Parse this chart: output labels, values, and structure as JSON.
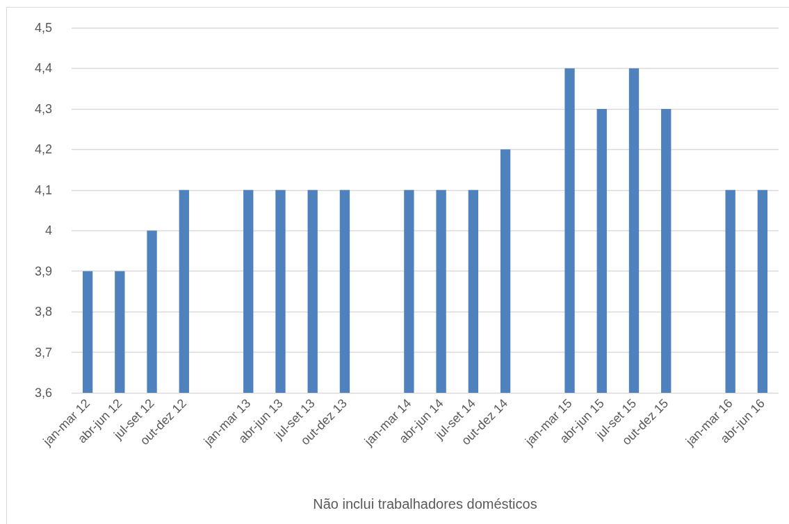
{
  "chart_data": {
    "type": "bar",
    "xlabel": "Não inclui trabalhadores domésticos",
    "categories": [
      "jan-mar 12",
      "abr-jun 12",
      "jul-set 12",
      "out-dez 12",
      null,
      "jan-mar 13",
      "abr-jun 13",
      "jul-set 13",
      "out-dez 13",
      null,
      "jan-mar 14",
      "abr-jun 14",
      "jul-set 14",
      "out-dez 14",
      null,
      "jan-mar 15",
      "abr-jun 15",
      "jul-set 15",
      "out-dez 15",
      null,
      "jan-mar 16",
      "abr-jun 16"
    ],
    "values": [
      3.9,
      3.9,
      4.0,
      4.1,
      null,
      4.1,
      4.1,
      4.1,
      4.1,
      null,
      4.1,
      4.1,
      4.1,
      4.2,
      null,
      4.4,
      4.3,
      4.4,
      4.3,
      null,
      4.1,
      4.1
    ],
    "color": "#4f81bd",
    "ylim": [
      3.6,
      4.5
    ],
    "yticks": [
      {
        "value": 3.6,
        "label": "3,6"
      },
      {
        "value": 3.7,
        "label": "3,7"
      },
      {
        "value": 3.8,
        "label": "3,8"
      },
      {
        "value": 3.9,
        "label": "3,9"
      },
      {
        "value": 4.0,
        "label": "4"
      },
      {
        "value": 4.1,
        "label": "4,1"
      },
      {
        "value": 4.2,
        "label": "4,2"
      },
      {
        "value": 4.3,
        "label": "4,3"
      },
      {
        "value": 4.4,
        "label": "4,4"
      },
      {
        "value": 4.5,
        "label": "4,5"
      }
    ],
    "grid": "y"
  }
}
